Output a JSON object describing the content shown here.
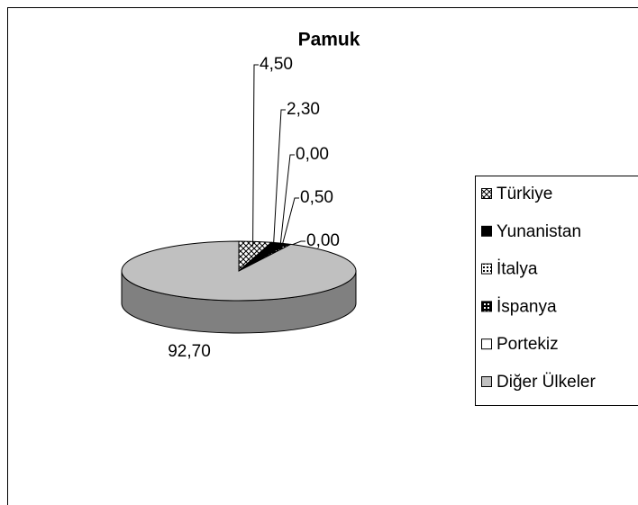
{
  "chart_data": {
    "type": "pie3d",
    "title": "Pamuk",
    "categories": [
      "Türkiye",
      "Yunanistan",
      "İtalya",
      "İspanya",
      "Portekiz",
      "Diğer Ülkeler"
    ],
    "values": [
      4.5,
      2.3,
      0,
      0.5,
      0,
      92.7
    ],
    "value_labels": [
      "4,50",
      "2,30",
      "0,00",
      "0,50",
      "0,00",
      "92,70"
    ],
    "legend": "right"
  }
}
